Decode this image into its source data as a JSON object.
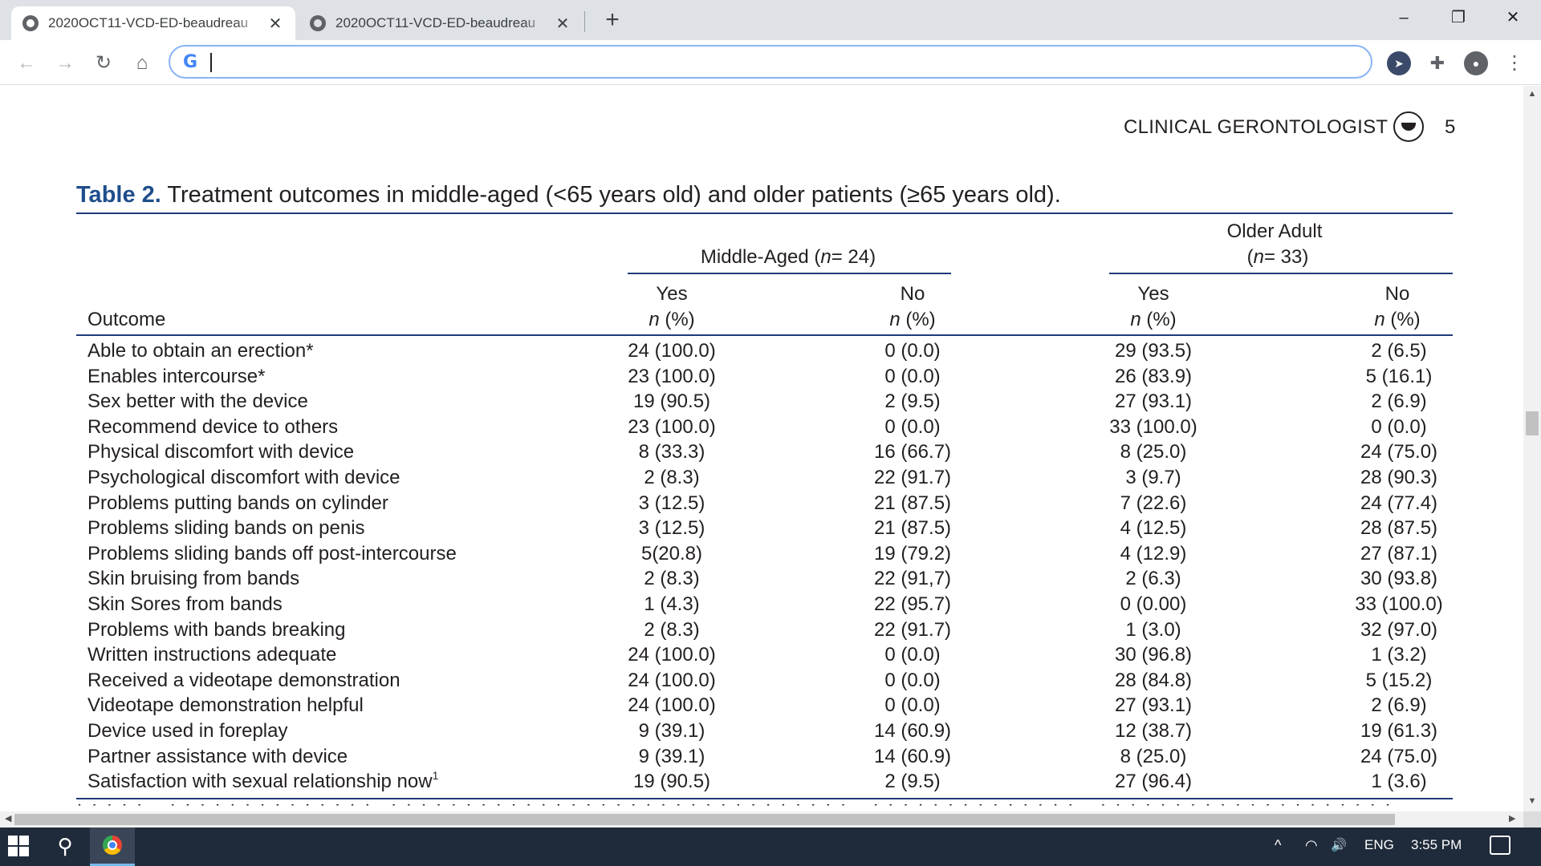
{
  "browser": {
    "tabs": [
      {
        "title": "2020OCT11-VCD-ED-beaudreau",
        "active": true
      },
      {
        "title": "2020OCT11-VCD-ED-beaudreau",
        "active": false
      }
    ],
    "new_tab_symbol": "+",
    "close_symbol": "✕",
    "window_controls": {
      "minimize": "–",
      "restore": "❐",
      "close": "✕"
    },
    "nav": {
      "back": "←",
      "forward": "→",
      "reload": "↻",
      "home": "⌂"
    },
    "omnibox": {
      "google_mark": "G",
      "value": "",
      "placeholder": ""
    },
    "extensions": [
      {
        "name": "cursor-extension-icon",
        "color": "#3c4a6a",
        "glyph": "➤"
      },
      {
        "name": "puzzle-icon",
        "color": "#5f6368",
        "glyph": "✚"
      },
      {
        "name": "profile-avatar-icon",
        "color": "#5f6368",
        "glyph": "●"
      }
    ],
    "menu_symbol": "⋮"
  },
  "document": {
    "running_header": "CLINICAL GERONTOLOGIST",
    "page_number": "5",
    "caption_label": "Table 2.",
    "caption_text": "Treatment outcomes in middle-aged (<65 years old) and older patients (≥65 years old).",
    "group_middle_prefix": "Middle-Aged (",
    "group_middle_n": "n",
    "group_middle_suffix": "= 24)",
    "group_older_line1": "Older Adult",
    "group_older_prefix": "(",
    "group_older_n": "n",
    "group_older_suffix": "= 33)",
    "col_outcome": "Outcome",
    "col_yes": "Yes",
    "col_no": "No",
    "col_n": "n",
    "col_pct": " (%)",
    "rows": [
      {
        "outcome": "Able to obtain an erection*",
        "sup": "",
        "my": "24 (100.0)",
        "mn": "0 (0.0)",
        "oy": "29 (93.5)",
        "on": "2 (6.5)"
      },
      {
        "outcome": "Enables intercourse*",
        "sup": "",
        "my": "23 (100.0)",
        "mn": "0 (0.0)",
        "oy": "26 (83.9)",
        "on": "5 (16.1)"
      },
      {
        "outcome": "Sex better with the device",
        "sup": "",
        "my": "19 (90.5)",
        "mn": "2 (9.5)",
        "oy": "27 (93.1)",
        "on": "2 (6.9)"
      },
      {
        "outcome": "Recommend device to others",
        "sup": "",
        "my": "23 (100.0)",
        "mn": "0 (0.0)",
        "oy": "33 (100.0)",
        "on": "0 (0.0)"
      },
      {
        "outcome": "Physical discomfort with device",
        "sup": "",
        "my": "8 (33.3)",
        "mn": "16 (66.7)",
        "oy": "8 (25.0)",
        "on": "24 (75.0)"
      },
      {
        "outcome": "Psychological discomfort with device",
        "sup": "",
        "my": "2 (8.3)",
        "mn": "22 (91.7)",
        "oy": "3 (9.7)",
        "on": "28 (90.3)"
      },
      {
        "outcome": "Problems putting bands on cylinder",
        "sup": "",
        "my": "3 (12.5)",
        "mn": "21 (87.5)",
        "oy": "7 (22.6)",
        "on": "24 (77.4)"
      },
      {
        "outcome": "Problems sliding bands on penis",
        "sup": "",
        "my": "3 (12.5)",
        "mn": "21 (87.5)",
        "oy": "4 (12.5)",
        "on": "28 (87.5)"
      },
      {
        "outcome": "Problems sliding bands off post-intercourse",
        "sup": "",
        "my": "5(20.8)",
        "mn": "19 (79.2)",
        "oy": "4 (12.9)",
        "on": "27 (87.1)"
      },
      {
        "outcome": "Skin bruising from bands",
        "sup": "",
        "my": "2 (8.3)",
        "mn": "22 (91,7)",
        "oy": "2 (6.3)",
        "on": "30 (93.8)"
      },
      {
        "outcome": "Skin Sores from bands",
        "sup": "",
        "my": "1 (4.3)",
        "mn": "22 (95.7)",
        "oy": "0 (0.00)",
        "on": "33 (100.0)"
      },
      {
        "outcome": "Problems with bands breaking",
        "sup": "",
        "my": "2 (8.3)",
        "mn": "22 (91.7)",
        "oy": "1 (3.0)",
        "on": "32 (97.0)"
      },
      {
        "outcome": "Written instructions adequate",
        "sup": "",
        "my": "24 (100.0)",
        "mn": "0 (0.0)",
        "oy": "30 (96.8)",
        "on": "1 (3.2)"
      },
      {
        "outcome": "Received a videotape demonstration",
        "sup": "",
        "my": "24 (100.0)",
        "mn": "0 (0.0)",
        "oy": "28 (84.8)",
        "on": "5 (15.2)"
      },
      {
        "outcome": "Videotape demonstration helpful",
        "sup": "",
        "my": "24 (100.0)",
        "mn": "0 (0.0)",
        "oy": "27 (93.1)",
        "on": "2 (6.9)"
      },
      {
        "outcome": "Device used in foreplay",
        "sup": "",
        "my": "9 (39.1)",
        "mn": "14 (60.9)",
        "oy": "12 (38.7)",
        "on": "19 (61.3)"
      },
      {
        "outcome": "Partner assistance with device",
        "sup": "",
        "my": "9 (39.1)",
        "mn": "14 (60.9)",
        "oy": "8 (25.0)",
        "on": "24 (75.0)"
      },
      {
        "outcome": "Satisfaction with sexual relationship now",
        "sup": "1",
        "my": "19 (90.5)",
        "mn": "2 (9.5)",
        "oy": "27 (96.4)",
        "on": "1 (3.6)"
      }
    ]
  },
  "taskbar": {
    "search_glyph": "⚲",
    "tray_chevron": "^",
    "tray_wifi": "◠",
    "tray_volume": "🔊",
    "language": "ENG",
    "clock": "3:55 PM"
  }
}
